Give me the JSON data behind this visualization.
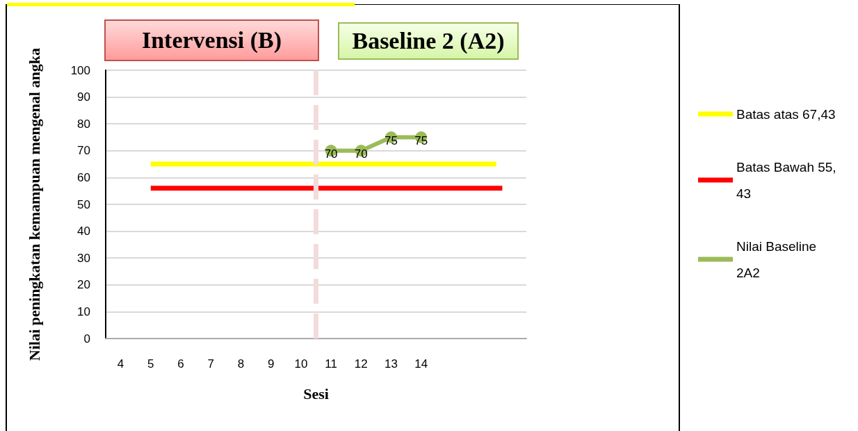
{
  "chart_data": {
    "type": "line",
    "annotations": [
      "Intervensi (B)",
      "Baseline 2 (A2)"
    ],
    "xlabel": "Sesi",
    "ylabel": "Nilai peningkatan kemampuan mengenal angka",
    "xlim": [
      3.5,
      17.5
    ],
    "xticks": [
      4,
      5,
      6,
      7,
      8,
      9,
      10,
      11,
      12,
      13,
      14
    ],
    "ylim": [
      0,
      100
    ],
    "yticks": [
      0,
      10,
      20,
      30,
      40,
      50,
      60,
      70,
      80,
      90,
      100
    ],
    "series": [
      {
        "name": "Batas atas 67,43",
        "color": "#ffff00",
        "x": [
          5,
          16.5
        ],
        "values": [
          65,
          65
        ],
        "marker": "none"
      },
      {
        "name": "Batas Bawah 55,43",
        "color": "#ff0000",
        "x": [
          5,
          16.7
        ],
        "values": [
          56,
          56
        ],
        "marker": "none"
      },
      {
        "name": "Nilai Baseline 2A2",
        "color": "#9bbb59",
        "x": [
          11,
          12,
          13,
          14
        ],
        "values": [
          70,
          70,
          75,
          75
        ],
        "marker": "circle",
        "value_labels": [
          "70",
          "70",
          "75",
          "75"
        ]
      }
    ],
    "ref_lines": [
      {
        "axis": "x",
        "value": 10.5,
        "color": "#f2dcdb",
        "line_style": "dashed"
      }
    ],
    "grid": "y",
    "legend": "right"
  }
}
